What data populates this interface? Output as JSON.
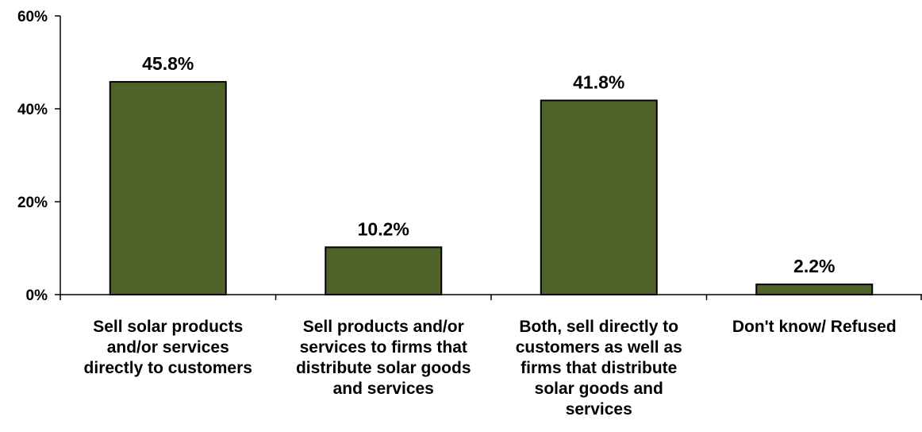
{
  "chart_data": {
    "type": "bar",
    "categories": [
      [
        "Sell solar products",
        "and/or services",
        "directly to customers"
      ],
      [
        "Sell products and/or",
        "services to firms that",
        "distribute solar goods",
        "and services"
      ],
      [
        "Both, sell directly to",
        "customers as well as",
        "firms that distribute",
        "solar goods and",
        "services"
      ],
      [
        "Don't know/ Refused"
      ]
    ],
    "values": [
      45.8,
      10.2,
      41.8,
      2.2
    ],
    "value_labels": [
      "45.8%",
      "10.2%",
      "41.8%",
      "2.2%"
    ],
    "ylim": [
      0,
      60
    ],
    "yticks": [
      0,
      20,
      40,
      60
    ],
    "ytick_labels": [
      "0%",
      "20%",
      "40%",
      "60%"
    ],
    "title": "",
    "xlabel": "",
    "ylabel": "",
    "grid": false,
    "legend": "none",
    "bar_color": "#4f6228",
    "bar_outline_color": "#000000"
  }
}
